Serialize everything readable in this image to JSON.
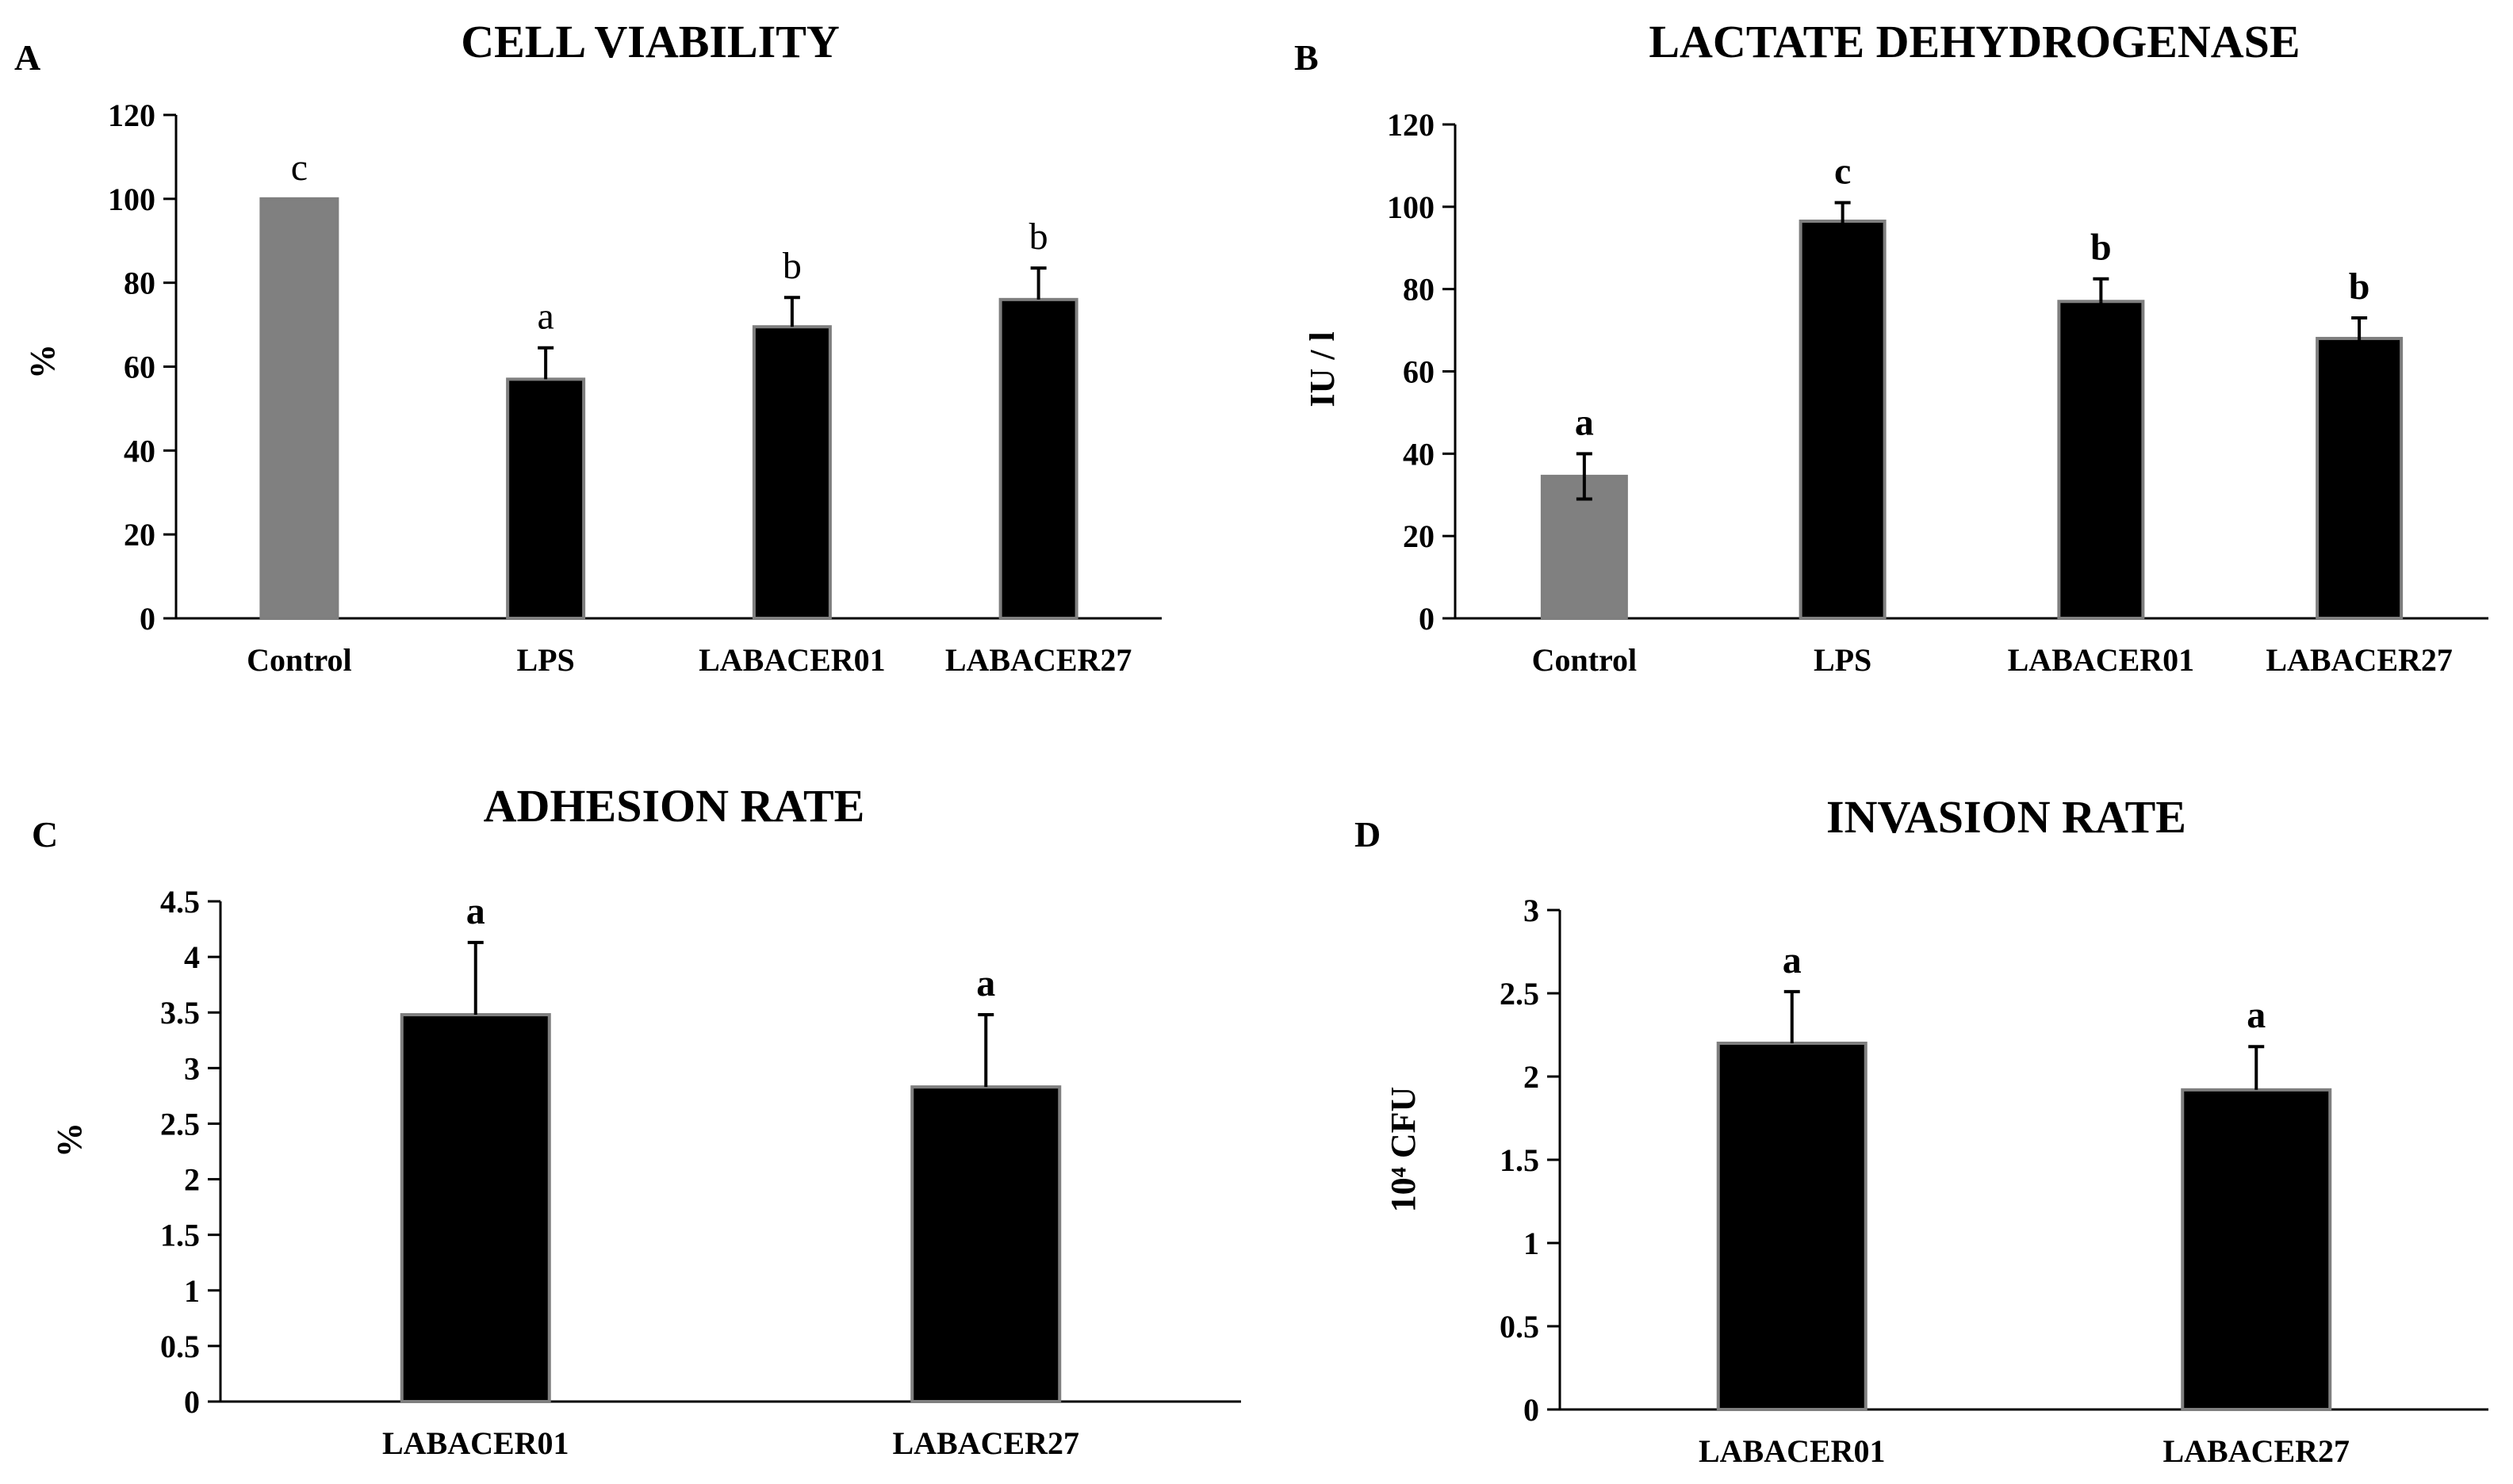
{
  "colors": {
    "control": "#808080",
    "treatment": "#000000",
    "bar_edge": "#7f7f7f"
  },
  "chart_data": [
    {
      "id": "A",
      "type": "bar",
      "panel_label": "A",
      "title": "CELL VIABILITY",
      "ylabel": "%",
      "xlabel": "",
      "ylim": [
        0,
        120
      ],
      "yticks": [
        0,
        20,
        40,
        60,
        80,
        100,
        120
      ],
      "categories": [
        "Control",
        "LPS",
        "LABACER01",
        "LABACER27"
      ],
      "values": [
        100,
        57,
        69.5,
        76
      ],
      "errors": [
        0,
        7.5,
        7,
        7.5
      ],
      "significance": [
        "c",
        "a",
        "b",
        "b"
      ],
      "sig_bold": false,
      "bar_colors": [
        "control",
        "treatment",
        "treatment",
        "treatment"
      ],
      "grid": false,
      "legend": "none"
    },
    {
      "id": "B",
      "type": "bar",
      "panel_label": "B",
      "title": "LACTATE DEHYDROGENASE",
      "ylabel": "IU / l",
      "xlabel": "",
      "ylim": [
        0,
        120
      ],
      "yticks": [
        0,
        20,
        40,
        60,
        80,
        100,
        120
      ],
      "categories": [
        "Control",
        "LPS",
        "LABACER01",
        "LABACER27"
      ],
      "values": [
        34.5,
        96.5,
        77,
        68
      ],
      "errors": [
        5.5,
        4.5,
        5.5,
        5
      ],
      "significance": [
        "a",
        "c",
        "b",
        "b"
      ],
      "sig_bold": true,
      "bar_colors": [
        "control",
        "treatment",
        "treatment",
        "treatment"
      ],
      "grid": false,
      "legend": "none"
    },
    {
      "id": "C",
      "type": "bar",
      "panel_label": "C",
      "title": "ADHESION RATE",
      "ylabel": "%",
      "xlabel": "",
      "ylim": [
        0,
        4.5
      ],
      "yticks": [
        0,
        0.5,
        1,
        1.5,
        2,
        2.5,
        3,
        3.5,
        4,
        4.5
      ],
      "categories": [
        "LABACER01",
        "LABACER27"
      ],
      "values": [
        3.48,
        2.83
      ],
      "errors": [
        0.65,
        0.65
      ],
      "significance": [
        "a",
        "a"
      ],
      "sig_bold": true,
      "bar_colors": [
        "treatment",
        "treatment"
      ],
      "grid": false,
      "legend": "none"
    },
    {
      "id": "D",
      "type": "bar",
      "panel_label": "D",
      "title": "INVASION RATE",
      "ylabel": "10⁴ CFU",
      "xlabel": "",
      "ylim": [
        0,
        3
      ],
      "yticks": [
        0,
        0.5,
        1,
        1.5,
        2,
        2.5,
        3
      ],
      "categories": [
        "LABACER01",
        "LABACER27"
      ],
      "values": [
        2.2,
        1.92
      ],
      "errors": [
        0.31,
        0.26
      ],
      "significance": [
        "a",
        "a"
      ],
      "sig_bold": true,
      "bar_colors": [
        "treatment",
        "treatment"
      ],
      "grid": false,
      "legend": "none"
    }
  ]
}
